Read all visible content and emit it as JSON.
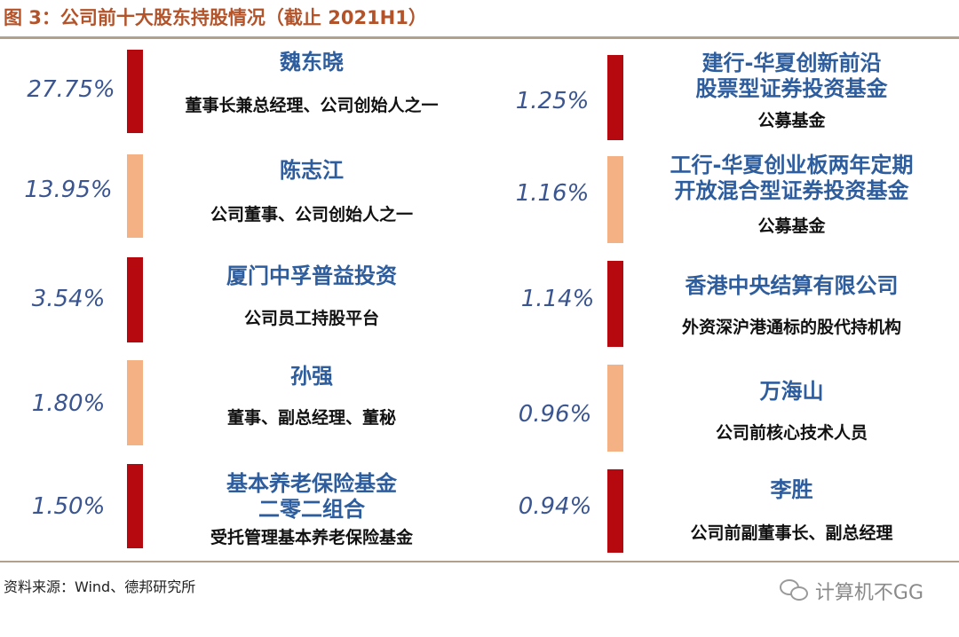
{
  "title": "图 3：公司前十大股东持股情况（截止 2021H1）",
  "source": "资料来源：Wind、德邦研究所",
  "watermark": "计算机不GG",
  "watermark_icon": "wechat-icon",
  "colors": {
    "bar_dark": "#b5090f",
    "bar_light": "#f4b183",
    "name": "#2e5d9e",
    "percent": "#3a5590"
  },
  "left": [
    {
      "percent": "27.75%",
      "bar": "dark",
      "name_lines": [
        "魏东晓"
      ],
      "role": "董事长兼总经理、公司创始人之一"
    },
    {
      "percent": "13.95%",
      "bar": "light",
      "name_lines": [
        "陈志江"
      ],
      "role": "公司董事、公司创始人之一"
    },
    {
      "percent": "3.54%",
      "bar": "dark",
      "name_lines": [
        "厦门中孚普益投资"
      ],
      "role": "公司员工持股平台"
    },
    {
      "percent": "1.80%",
      "bar": "light",
      "name_lines": [
        "孙强"
      ],
      "role": "董事、副总经理、董秘"
    },
    {
      "percent": "1.50%",
      "bar": "dark",
      "name_lines": [
        "基本养老保险基金",
        "二零二组合"
      ],
      "role": "受托管理基本养老保险基金"
    }
  ],
  "right": [
    {
      "percent": "1.25%",
      "bar": "dark",
      "name_lines": [
        "建行-华夏创新前沿",
        "股票型证券投资基金"
      ],
      "role": "公募基金"
    },
    {
      "percent": "1.16%",
      "bar": "light",
      "name_lines": [
        "工行-华夏创业板两年定期",
        "开放混合型证券投资基金"
      ],
      "role": "公募基金"
    },
    {
      "percent": "1.14%",
      "bar": "dark",
      "name_lines": [
        "香港中央结算有限公司"
      ],
      "role": "外资深沪港通标的股代持机构"
    },
    {
      "percent": "0.96%",
      "bar": "light",
      "name_lines": [
        "万海山"
      ],
      "role": "公司前核心技术人员"
    },
    {
      "percent": "0.94%",
      "bar": "dark",
      "name_lines": [
        "李胜"
      ],
      "role": "公司前副董事长、副总经理"
    }
  ]
}
